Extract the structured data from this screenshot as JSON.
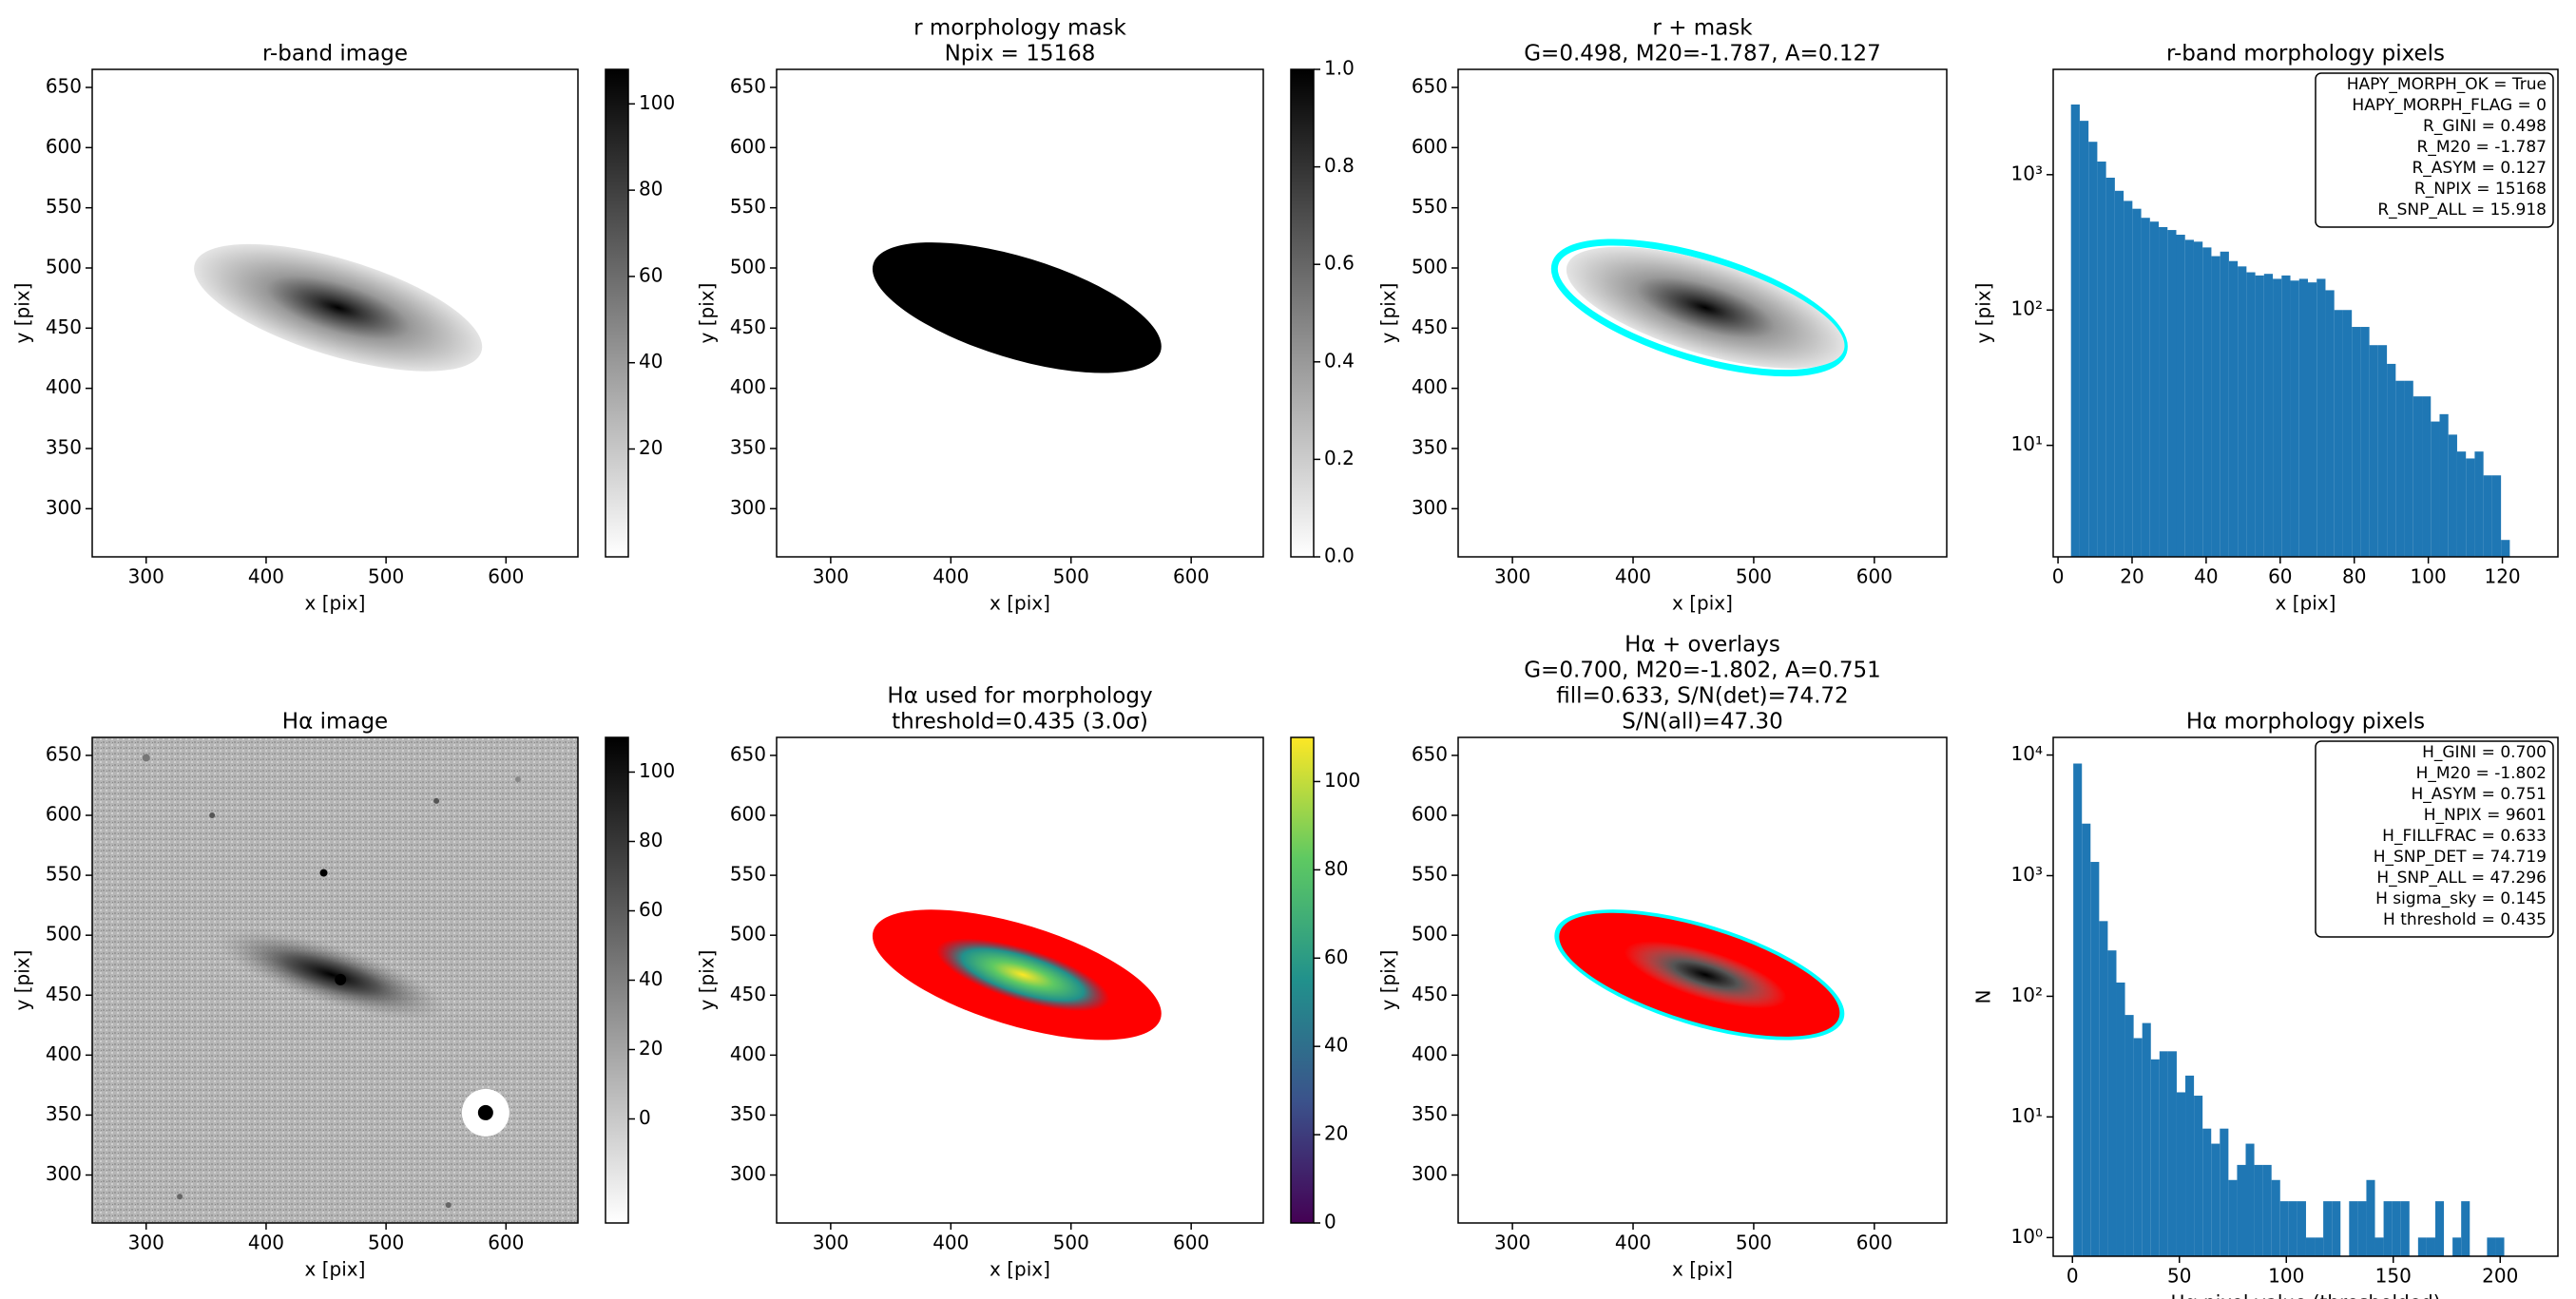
{
  "chart_data": [
    {
      "type": "image",
      "title": [
        "r-band image"
      ],
      "xlabel": "x [pix]",
      "ylabel": "y [pix]",
      "xlim": [
        255,
        660
      ],
      "ylim": [
        260,
        665
      ],
      "xticks": [
        300,
        400,
        500,
        600
      ],
      "yticks": [
        300,
        350,
        400,
        450,
        500,
        550,
        600,
        650
      ],
      "colormap": "gray_r",
      "colorbar_lim": [
        -5,
        108
      ],
      "colorbar_ticks": [
        20,
        40,
        60,
        80,
        100
      ]
    },
    {
      "type": "image",
      "title": [
        "r morphology mask",
        "Npix = 15168"
      ],
      "xlabel": "x [pix]",
      "ylabel": "y [pix]",
      "xlim": [
        255,
        660
      ],
      "ylim": [
        260,
        665
      ],
      "xticks": [
        300,
        400,
        500,
        600
      ],
      "yticks": [
        300,
        350,
        400,
        450,
        500,
        550,
        600,
        650
      ],
      "colormap": "gray_r",
      "colorbar_lim": [
        0,
        1
      ],
      "colorbar_ticks": [
        {
          "value": 0,
          "label": "0.0"
        },
        {
          "value": 0.2,
          "label": "0.2"
        },
        {
          "value": 0.4,
          "label": "0.4"
        },
        {
          "value": 0.6,
          "label": "0.6"
        },
        {
          "value": 0.8,
          "label": "0.8"
        },
        {
          "value": 1,
          "label": "1.0"
        }
      ]
    },
    {
      "type": "image",
      "title": [
        "r + mask",
        "G=0.498, M20=-1.787, A=0.127"
      ],
      "xlabel": "x [pix]",
      "ylabel": "y [pix]",
      "xlim": [
        255,
        660
      ],
      "ylim": [
        260,
        665
      ],
      "xticks": [
        300,
        400,
        500,
        600
      ],
      "yticks": [
        300,
        350,
        400,
        450,
        500,
        550,
        600,
        650
      ]
    },
    {
      "type": "histogram",
      "title": [
        "r-band morphology pixels"
      ],
      "xlabel": "x [pix]",
      "ylabel": "y [pix]",
      "color": "#1f77b4",
      "log_y": true,
      "xlim": [
        -1.3,
        135
      ],
      "ylim": [
        1.5,
        6000
      ],
      "xticks": [
        0,
        20,
        40,
        60,
        80,
        100,
        120
      ],
      "yticks": [
        {
          "value": 10,
          "label": "10¹"
        },
        {
          "value": 100,
          "label": "10²"
        },
        {
          "value": 1000,
          "label": "10³"
        }
      ],
      "bins": [
        3.5,
        5.87,
        8.24,
        10.61,
        12.98,
        15.35,
        17.72,
        20.09,
        22.46,
        24.83,
        27.2,
        29.57,
        31.94,
        34.31,
        36.68,
        39.05,
        41.42,
        43.79,
        46.16,
        48.53,
        50.9,
        53.27,
        55.64,
        58.01,
        60.38,
        62.75,
        65.12,
        67.49,
        69.86,
        72.23,
        74.6,
        76.97,
        79.34,
        81.71,
        84.08,
        86.45,
        88.82,
        91.19,
        93.56,
        95.93,
        98.3,
        100.67,
        103.04,
        105.41,
        107.78,
        110.15,
        112.52,
        114.89,
        117.26,
        119.63,
        122.0
      ],
      "values": [
        3300,
        2500,
        1750,
        1250,
        950,
        760,
        640,
        560,
        480,
        450,
        410,
        390,
        360,
        330,
        320,
        290,
        250,
        270,
        230,
        210,
        190,
        180,
        185,
        170,
        180,
        165,
        170,
        160,
        170,
        140,
        100,
        100,
        75,
        75,
        55,
        55,
        40,
        30,
        30,
        23,
        23,
        15,
        17,
        12,
        9,
        8,
        9,
        6,
        6,
        2
      ],
      "annotation": [
        "HAPY_MORPH_OK = True",
        "HAPY_MORPH_FLAG = 0",
        "R_GINI = 0.498",
        "R_M20 = -1.787",
        "R_ASYM = 0.127",
        "R_NPIX = 15168",
        "R_SNP_ALL = 15.918"
      ]
    },
    {
      "type": "image",
      "title": [
        "Hα image"
      ],
      "xlabel": "x [pix]",
      "ylabel": "y [pix]",
      "xlim": [
        255,
        660
      ],
      "ylim": [
        260,
        665
      ],
      "xticks": [
        300,
        400,
        500,
        600
      ],
      "yticks": [
        300,
        350,
        400,
        450,
        500,
        550,
        600,
        650
      ],
      "colormap": "gray_r",
      "colorbar_lim": [
        -30,
        110
      ],
      "colorbar_ticks": [
        0,
        20,
        40,
        60,
        80,
        100
      ]
    },
    {
      "type": "image",
      "title": [
        "Hα used for morphology",
        "threshold=0.435 (3.0σ)"
      ],
      "xlabel": "x [pix]",
      "ylabel": "y [pix]",
      "xlim": [
        255,
        660
      ],
      "ylim": [
        260,
        665
      ],
      "xticks": [
        300,
        400,
        500,
        600
      ],
      "yticks": [
        300,
        350,
        400,
        450,
        500,
        550,
        600,
        650
      ],
      "colormap": "viridis",
      "colorbar_lim": [
        0,
        110
      ],
      "colorbar_ticks": [
        0,
        20,
        40,
        60,
        80,
        100
      ]
    },
    {
      "type": "image",
      "title": [
        "Hα + overlays",
        "G=0.700, M20=-1.802, A=0.751",
        "fill=0.633, S/N(det)=74.72",
        "S/N(all)=47.30"
      ],
      "xlabel": "x [pix]",
      "ylabel": "y [pix]",
      "xlim": [
        255,
        660
      ],
      "ylim": [
        260,
        665
      ],
      "xticks": [
        300,
        400,
        500,
        600
      ],
      "yticks": [
        300,
        350,
        400,
        450,
        500,
        550,
        600,
        650
      ]
    },
    {
      "type": "histogram",
      "title": [
        "Hα morphology pixels"
      ],
      "xlabel": "Hα pixel value (thresholded)",
      "ylabel": "N",
      "color": "#1f77b4",
      "log_y": true,
      "xlim": [
        -9,
        227
      ],
      "ylim": [
        0.7,
        14000
      ],
      "xticks": [
        0,
        50,
        100,
        150,
        200
      ],
      "yticks": [
        {
          "value": 1,
          "label": "10⁰"
        },
        {
          "value": 10,
          "label": "10¹"
        },
        {
          "value": 100,
          "label": "10²"
        },
        {
          "value": 1000,
          "label": "10³"
        },
        {
          "value": 10000,
          "label": "10⁴"
        }
      ],
      "bins": [
        0.4,
        4.43,
        8.46,
        12.49,
        16.52,
        20.55,
        24.58,
        28.61,
        32.64,
        36.67,
        40.7,
        44.73,
        48.76,
        52.79,
        56.82,
        60.85,
        64.88,
        68.91,
        72.94,
        76.97,
        81.0,
        85.03,
        89.06,
        93.09,
        97.12,
        101.15,
        105.18,
        109.21,
        113.24,
        117.27,
        121.3,
        125.33,
        129.36,
        133.39,
        137.42,
        141.45,
        145.48,
        149.51,
        153.54,
        157.57,
        161.6,
        165.63,
        169.66,
        173.69,
        177.72,
        181.75,
        185.78,
        189.81,
        193.84,
        197.87,
        201.9
      ],
      "values": [
        8500,
        2700,
        1300,
        420,
        240,
        130,
        70,
        45,
        60,
        30,
        35,
        35,
        16,
        22,
        15,
        8,
        6,
        8,
        3,
        4,
        6,
        4,
        4,
        3,
        2,
        2,
        2,
        1,
        1,
        2,
        2,
        0,
        2,
        2,
        3,
        1,
        2,
        2,
        2,
        0,
        1,
        1,
        2,
        0,
        1,
        2,
        0,
        0,
        1,
        1
      ],
      "annotation": [
        "H_GINI = 0.700",
        "H_M20 = -1.802",
        "H_ASYM = 0.751",
        "H_NPIX = 9601",
        "H_FILLFRAC = 0.633",
        "H_SNP_DET = 74.719",
        "H_SNP_ALL = 47.296",
        "H sigma_sky = 0.145",
        "H threshold = 0.435"
      ]
    }
  ]
}
